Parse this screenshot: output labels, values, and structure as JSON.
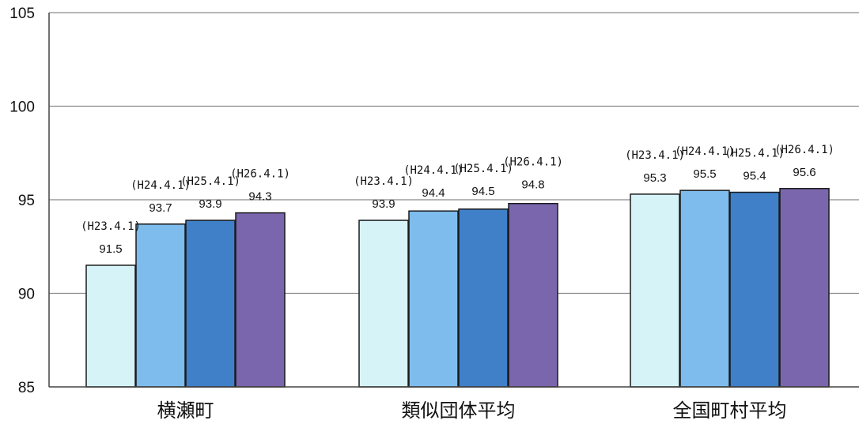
{
  "chart_data": {
    "type": "bar",
    "title": "",
    "xlabel": "",
    "ylabel": "",
    "ylim": [
      85,
      105
    ],
    "yticks": [
      85,
      90,
      95,
      100,
      105
    ],
    "grid": true,
    "legend": "none",
    "categories": [
      "横瀬町",
      "類似団体平均",
      "全国町村平均"
    ],
    "series": [
      {
        "period_label": "(H23.4.1)",
        "color": "#d6f3f8",
        "values": [
          91.5,
          93.9,
          95.3
        ]
      },
      {
        "period_label": "(H24.4.1)",
        "color": "#7dbcec",
        "values": [
          93.7,
          94.4,
          95.5
        ]
      },
      {
        "period_label": "(H25.4.1)",
        "color": "#3f80c9",
        "values": [
          93.9,
          94.5,
          95.4
        ]
      },
      {
        "period_label": "(H26.4.1)",
        "color": "#7a66ad",
        "values": [
          94.3,
          94.8,
          95.6
        ]
      }
    ]
  }
}
